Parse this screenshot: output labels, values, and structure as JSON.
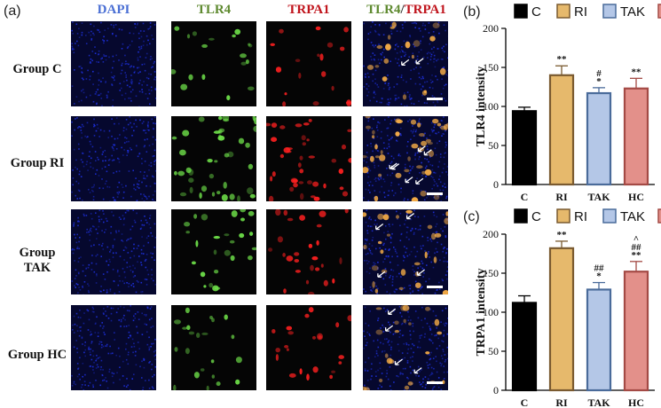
{
  "figure": {
    "panel_a_label": "(a)",
    "column_headers": [
      {
        "text": "DAPI",
        "color": "#4a6fd4"
      },
      {
        "text": "TLR4",
        "color": "#5f8a30"
      },
      {
        "text": "TRPA1",
        "color": "#c0141c"
      }
    ],
    "merge_header": {
      "part1": "TLR4",
      "slash": "/",
      "part2": "TRPA1"
    },
    "row_labels": [
      "Group C",
      "Group RI",
      "Group TAK",
      "Group HC"
    ],
    "channel_colors": {
      "dapi": "#1d2fd8",
      "tlr4": "#6fe24a",
      "trpa1": "#ff2020",
      "merge": "#ffb347"
    }
  },
  "chart_data": [
    {
      "panel_label": "(b)",
      "type": "bar",
      "categories": [
        "C",
        "RI",
        "TAK",
        "HC"
      ],
      "values": [
        94,
        140,
        117,
        123
      ],
      "errors": [
        5,
        12,
        7,
        13
      ],
      "annotations": [
        [],
        [
          "**"
        ],
        [
          "#",
          "*"
        ],
        [
          "**"
        ]
      ],
      "ylabel": "TLR4 intensity",
      "ylim": [
        0,
        200
      ],
      "yticks": [
        0,
        50,
        100,
        150,
        200
      ],
      "legend": [
        "C",
        "RI",
        "TAK",
        "HC"
      ],
      "legend_position": "top",
      "colors": [
        {
          "fill": "#000000",
          "stroke": "#000000"
        },
        {
          "fill": "#e6b96c",
          "stroke": "#7a5a30"
        },
        {
          "fill": "#b4c7e7",
          "stroke": "#4a6b9a"
        },
        {
          "fill": "#e3908a",
          "stroke": "#a44a45"
        }
      ]
    },
    {
      "panel_label": "(c)",
      "type": "bar",
      "categories": [
        "C",
        "RI",
        "TAK",
        "HC"
      ],
      "values": [
        112,
        182,
        129,
        152
      ],
      "errors": [
        9,
        9,
        9,
        13
      ],
      "annotations": [
        [],
        [
          "**"
        ],
        [
          "##",
          "*"
        ],
        [
          "^",
          "##",
          "**"
        ]
      ],
      "ylabel": "TRPA1 intensity",
      "ylim": [
        0,
        200
      ],
      "yticks": [
        0,
        50,
        100,
        150,
        200
      ],
      "legend": [
        "C",
        "RI",
        "TAK",
        "HC"
      ],
      "legend_position": "top",
      "colors": [
        {
          "fill": "#000000",
          "stroke": "#000000"
        },
        {
          "fill": "#e6b96c",
          "stroke": "#7a5a30"
        },
        {
          "fill": "#b4c7e7",
          "stroke": "#4a6b9a"
        },
        {
          "fill": "#e3908a",
          "stroke": "#a44a45"
        }
      ]
    }
  ]
}
